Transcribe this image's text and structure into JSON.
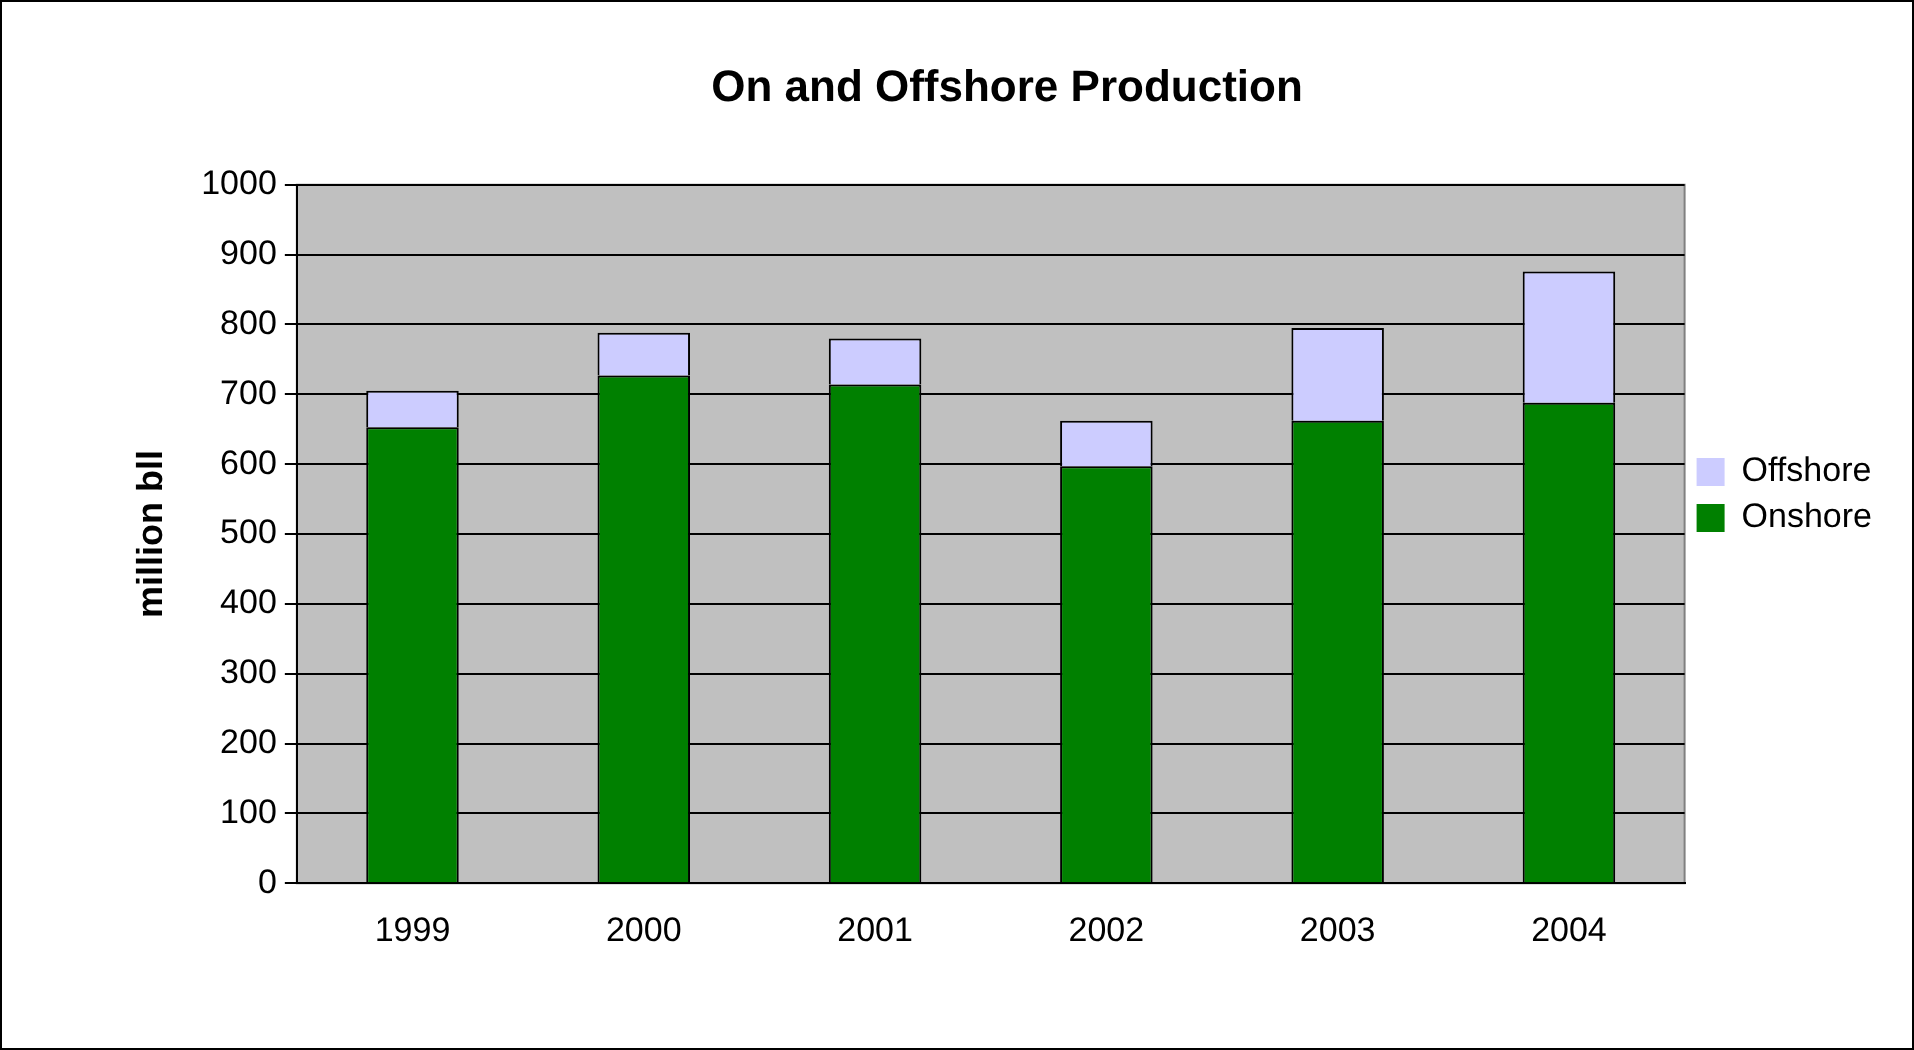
{
  "chart_data": {
    "type": "bar",
    "title": "On and Offshore Production",
    "ylabel": "million bll",
    "categories": [
      "1999",
      "2000",
      "2001",
      "2002",
      "2003",
      "2004"
    ],
    "stacked": true,
    "series": [
      {
        "name": "Onshore",
        "color": "#008000",
        "values": [
          653,
          727,
          714,
          597,
          662,
          688
        ]
      },
      {
        "name": "Offshore",
        "color": "#ccccff",
        "values": [
          52,
          61,
          66,
          65,
          133,
          188
        ]
      }
    ],
    "ylim": [
      0,
      1000
    ],
    "yticks": [
      0,
      100,
      200,
      300,
      400,
      500,
      600,
      700,
      800,
      900,
      1000
    ],
    "grid": "y",
    "legend": "right"
  }
}
